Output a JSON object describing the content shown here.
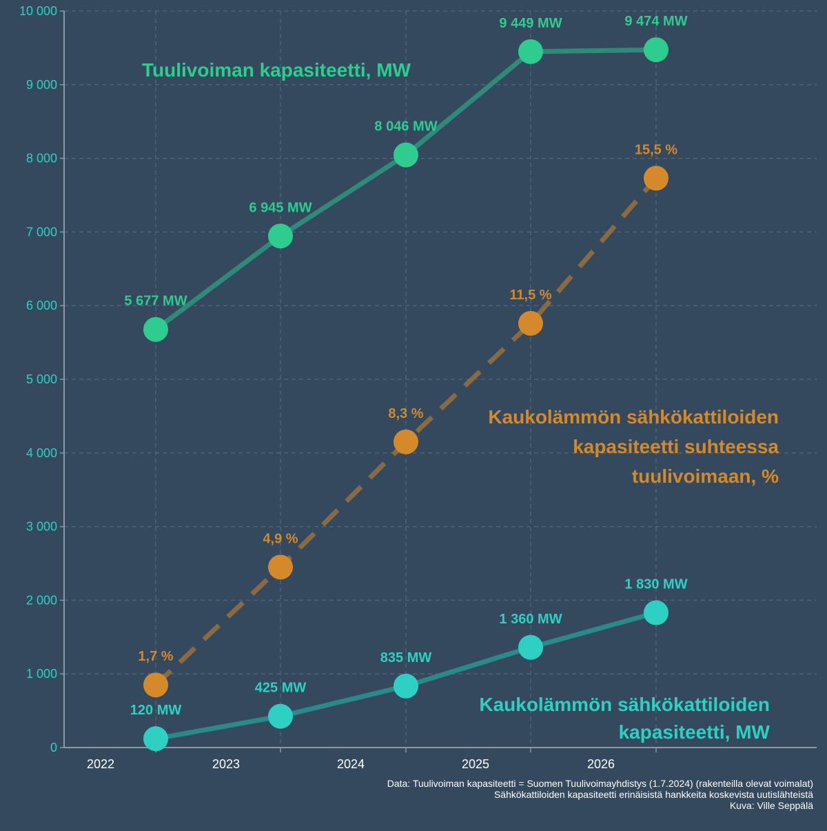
{
  "chart_data": {
    "type": "line",
    "x": [
      2022,
      2023,
      2024,
      2025,
      2026
    ],
    "x_tick_labels": [
      "2022",
      "2023",
      "2024",
      "2025",
      "2026"
    ],
    "ylim": [
      0,
      10000
    ],
    "y_ticks": [
      0,
      1000,
      2000,
      3000,
      4000,
      5000,
      6000,
      7000,
      8000,
      9000,
      10000
    ],
    "y_tick_labels": [
      "0",
      "1 000",
      "2 000",
      "3 000",
      "4 000",
      "5 000",
      "6 000",
      "7 000",
      "8 000",
      "9 000",
      "10 000"
    ],
    "grid": true,
    "series": [
      {
        "key": "wind",
        "name": "Tuulivoiman kapasiteetti, MW",
        "name_lines": [
          "Tuulivoiman kapasiteetti, MW"
        ],
        "values": [
          5677,
          6945,
          8046,
          9449,
          9474
        ],
        "labels": [
          "5 677 MW",
          "6 945 MW",
          "8 046 MW",
          "9 449 MW",
          "9 474 MW"
        ],
        "color": "#2ecc8f",
        "line_color": "#2e8b7a",
        "dashed": false
      },
      {
        "key": "ratio",
        "name": "Kaukolämmön sähkökattiloiden kapasiteetti suhteessa tuulivoimaan, %",
        "name_lines": [
          "Kaukolämmön sähkökattiloiden",
          "kapasiteetti suhteessa",
          "tuulivoimaan, %"
        ],
        "percent": [
          1.7,
          4.9,
          8.3,
          11.5,
          15.5
        ],
        "plotted_values": [
          850,
          2450,
          4150,
          5760,
          7730
        ],
        "labels": [
          "1,7 %",
          "4,9 %",
          "8,3 %",
          "11,5 %",
          "15,5 %"
        ],
        "color": "#d4892a",
        "line_color": "#8a6a40",
        "dashed": true
      },
      {
        "key": "boiler",
        "name": "Kaukolämmön sähkökattiloiden kapasiteetti, MW",
        "name_lines": [
          "Kaukolämmön sähkökattiloiden",
          "kapasiteetti, MW"
        ],
        "values": [
          120,
          425,
          835,
          1360,
          1830
        ],
        "labels": [
          "120 MW",
          "425 MW",
          "835 MW",
          "1 360 MW",
          "1 830 MW"
        ],
        "color": "#2fd0c4",
        "line_color": "#2a8a8a",
        "dashed": false
      }
    ]
  },
  "source": {
    "line1": "Data: Tuulivoiman kapasiteetti = Suomen Tuulivoimayhdistys (1.7.2024) (rakenteilla olevat voimalat)",
    "line2": "Sähkökattiloiden kapasiteetti erinäisistä hankkeita koskevista uutislähteistä",
    "line3": "Kuva: Ville Seppälä"
  }
}
